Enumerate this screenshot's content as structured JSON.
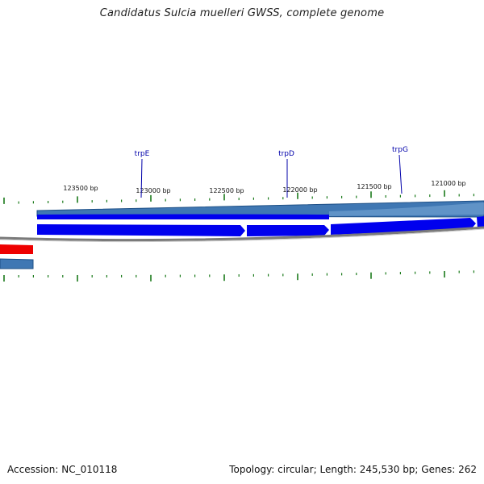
{
  "title": "Candidatus Sulcia muelleri GWSS, complete genome",
  "footer": {
    "accession_label": "Accession:",
    "accession": "NC_010118",
    "topology_label": "Topology:",
    "topology": "circular",
    "length_label": "Length:",
    "length": "245,530 bp",
    "genes_label": "Genes:",
    "genes": "262"
  },
  "scale_labels": [
    "123500 bp",
    "123000 bp",
    "122500 bp",
    "122000 bp",
    "121500 bp",
    "121000 bp"
  ],
  "gene_labels": [
    "trpE",
    "trpD",
    "trpG"
  ],
  "colors": {
    "forward_gene": "#0000ee",
    "other_gene": "#ee0000",
    "band": "#4a80b8",
    "backbone": "#7f7f7f",
    "tick": "#1a7a1a",
    "gene_label": "#0000aa"
  }
}
